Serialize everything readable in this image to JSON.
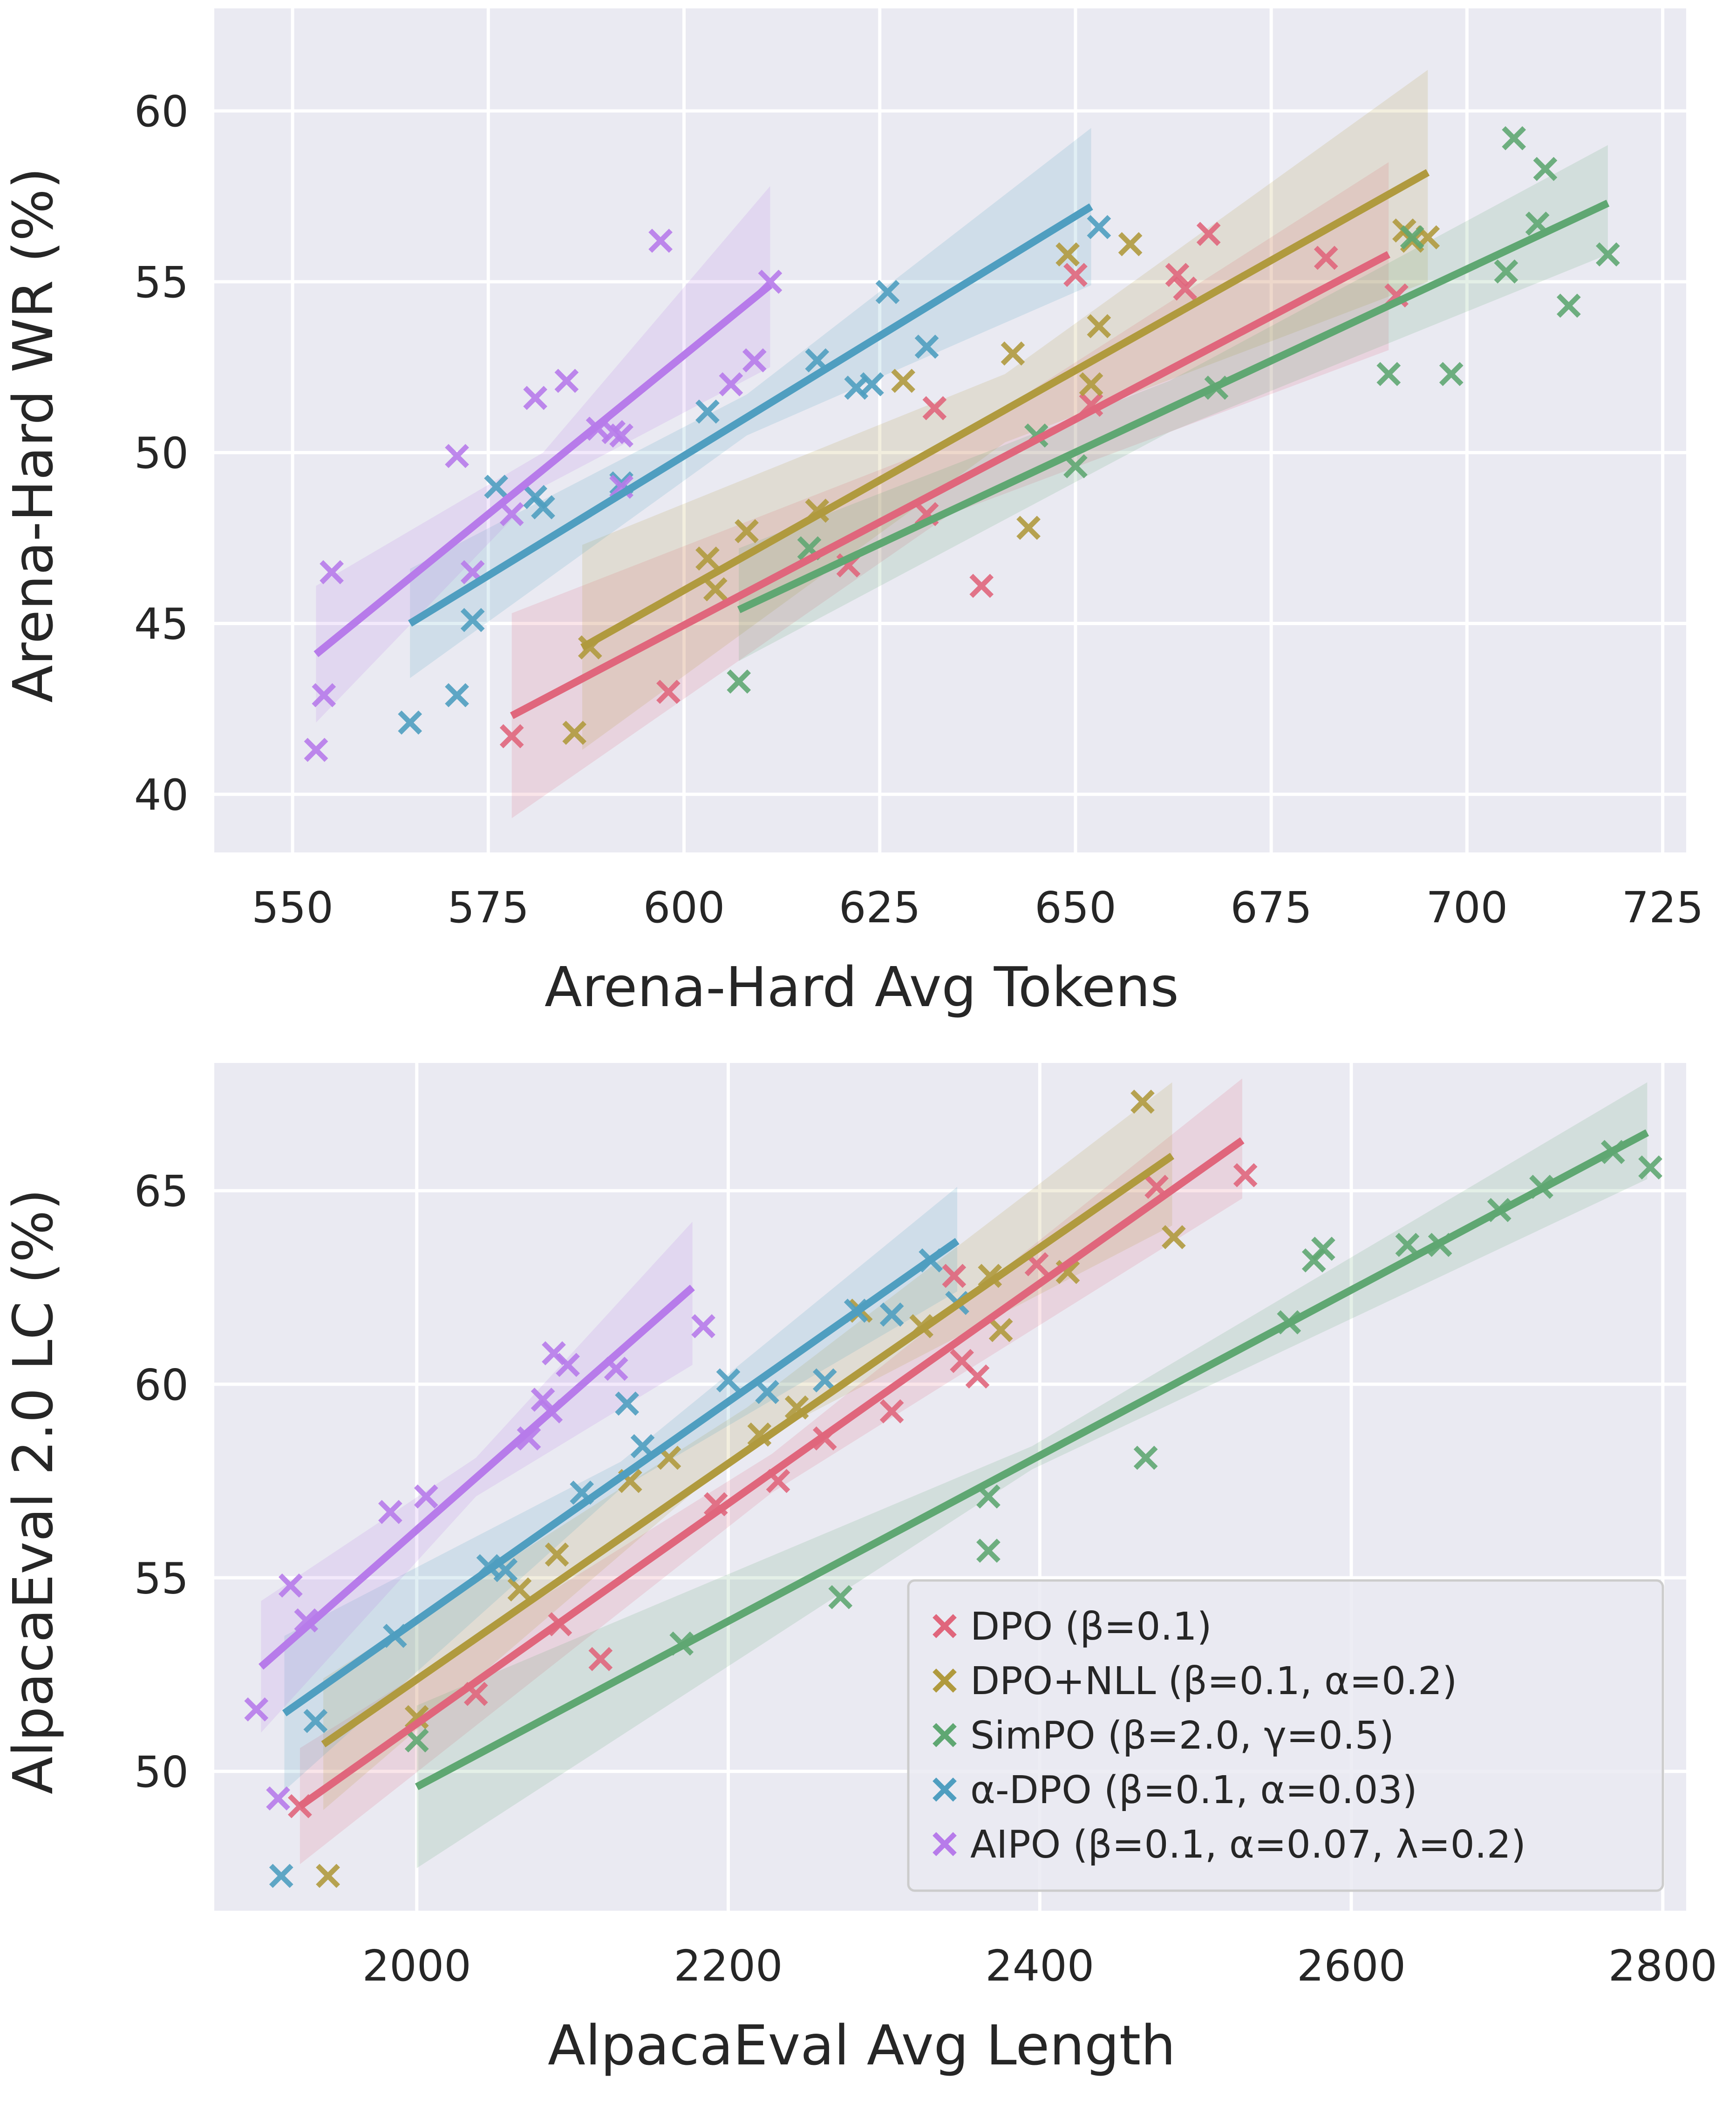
{
  "series_styles": [
    {
      "key": "dpo",
      "color": "#e0667c"
    },
    {
      "key": "dponll",
      "color": "#b09a3e"
    },
    {
      "key": "simpo",
      "color": "#5fa772"
    },
    {
      "key": "adpo",
      "color": "#4f9ec0"
    },
    {
      "key": "aipo",
      "color": "#b77bea"
    }
  ],
  "legend": {
    "placement": "lower-right of bottom chart",
    "entries": [
      "DPO (β=0.1)",
      "DPO+NLL (β=0.1, α=0.2)",
      "SimPO (β=2.0, γ=0.5)",
      "α-DPO (β=0.1, α=0.03)",
      "AIPO (β=0.1, α=0.07, λ=0.2)"
    ]
  },
  "chart_data": [
    {
      "type": "scatter",
      "xlabel": "Arena-Hard Avg Tokens",
      "ylabel": "Arena-Hard WR (%)",
      "xlim": [
        540,
        728
      ],
      "ylim": [
        38.3,
        63
      ],
      "xticks": [
        550,
        575,
        600,
        625,
        650,
        675,
        700,
        725
      ],
      "yticks": [
        40,
        45,
        50,
        55,
        60
      ],
      "grid": true,
      "series": [
        {
          "key": "dpo",
          "points": [
            [
              578,
              41.7
            ],
            [
              598,
              43.0
            ],
            [
              621,
              46.7
            ],
            [
              631,
              48.2
            ],
            [
              632,
              51.3
            ],
            [
              638,
              46.1
            ],
            [
              650,
              55.2
            ],
            [
              652,
              51.4
            ],
            [
              663,
              55.2
            ],
            [
              664,
              54.8
            ],
            [
              667,
              56.4
            ],
            [
              682,
              55.7
            ],
            [
              691,
              54.6
            ]
          ],
          "fit": [
            [
              578,
              42.3
            ],
            [
              690,
              55.8
            ]
          ],
          "band": [
            [
              578,
              39.3,
              45.3
            ],
            [
              634,
              48.2,
              50.3
            ],
            [
              690,
              53.0,
              58.5
            ]
          ]
        },
        {
          "key": "dponll",
          "points": [
            [
              586,
              41.8
            ],
            [
              588,
              44.3
            ],
            [
              603,
              46.9
            ],
            [
              604,
              46.0
            ],
            [
              608,
              47.7
            ],
            [
              617,
              48.3
            ],
            [
              628,
              52.1
            ],
            [
              642,
              52.9
            ],
            [
              644,
              47.8
            ],
            [
              649,
              55.8
            ],
            [
              652,
              52.0
            ],
            [
              653,
              53.7
            ],
            [
              657,
              56.1
            ],
            [
              692,
              56.5
            ],
            [
              693,
              56.2
            ],
            [
              695,
              56.3
            ]
          ],
          "fit": [
            [
              587,
              44.3
            ],
            [
              695,
              58.2
            ]
          ],
          "band": [
            [
              587,
              41.3,
              47.3
            ],
            [
              641,
              50.3,
              52.3
            ],
            [
              695,
              55.0,
              61.2
            ]
          ]
        },
        {
          "key": "simpo",
          "points": [
            [
              607,
              43.3
            ],
            [
              616,
              47.2
            ],
            [
              645,
              50.5
            ],
            [
              650,
              49.6
            ],
            [
              668,
              51.9
            ],
            [
              690,
              52.3
            ],
            [
              693,
              56.3
            ],
            [
              698,
              52.3
            ],
            [
              705,
              55.3
            ],
            [
              706,
              59.2
            ],
            [
              709,
              56.7
            ],
            [
              710,
              58.3
            ],
            [
              713,
              54.3
            ],
            [
              718,
              55.8
            ]
          ],
          "fit": [
            [
              607,
              45.4
            ],
            [
              718,
              57.3
            ]
          ],
          "band": [
            [
              607,
              43.9,
              47.2
            ],
            [
              662,
              50.6,
              52.1
            ],
            [
              718,
              55.8,
              59.0
            ]
          ]
        },
        {
          "key": "adpo",
          "points": [
            [
              565,
              42.1
            ],
            [
              571,
              42.9
            ],
            [
              573,
              45.1
            ],
            [
              576,
              49.0
            ],
            [
              581,
              48.7
            ],
            [
              582,
              48.4
            ],
            [
              592,
              49.1
            ],
            [
              603,
              51.2
            ],
            [
              617,
              52.7
            ],
            [
              622,
              51.9
            ],
            [
              624,
              52.0
            ],
            [
              626,
              54.7
            ],
            [
              631,
              53.1
            ],
            [
              653,
              56.6
            ]
          ],
          "fit": [
            [
              565,
              45.0
            ],
            [
              652,
              57.2
            ]
          ],
          "band": [
            [
              565,
              43.4,
              46.6
            ],
            [
              608,
              50.5,
              51.7
            ],
            [
              652,
              54.9,
              59.5
            ]
          ]
        },
        {
          "key": "aipo",
          "points": [
            [
              553,
              41.3
            ],
            [
              554,
              42.9
            ],
            [
              555,
              46.5
            ],
            [
              571,
              49.9
            ],
            [
              573,
              46.5
            ],
            [
              578,
              48.2
            ],
            [
              581,
              51.6
            ],
            [
              585,
              52.1
            ],
            [
              589,
              50.7
            ],
            [
              591,
              50.6
            ],
            [
              592,
              50.5
            ],
            [
              592,
              49.0
            ],
            [
              597,
              56.2
            ],
            [
              606,
              52.0
            ],
            [
              609,
              52.7
            ],
            [
              611,
              55.0
            ]
          ],
          "fit": [
            [
              553,
              44.1
            ],
            [
              611,
              54.9
            ]
          ],
          "band": [
            [
              553,
              42.1,
              46.1
            ],
            [
              582,
              49.0,
              50.0
            ],
            [
              611,
              52.5,
              57.8
            ]
          ]
        }
      ]
    },
    {
      "type": "scatter",
      "xlabel": "AlpacaEval Avg Length",
      "ylabel": "AlpacaEval 2.0 LC (%)",
      "xlim": [
        1870,
        2815
      ],
      "ylim": [
        46.4,
        68.3
      ],
      "xticks": [
        2000,
        2200,
        2400,
        2600,
        2800
      ],
      "yticks": [
        50,
        55,
        60,
        65
      ],
      "grid": true,
      "series": [
        {
          "key": "dpo",
          "points": [
            [
              1925,
              49.1
            ],
            [
              2038,
              52.0
            ],
            [
              2092,
              53.8
            ],
            [
              2118,
              52.9
            ],
            [
              2192,
              56.9
            ],
            [
              2232,
              57.5
            ],
            [
              2262,
              58.6
            ],
            [
              2305,
              59.3
            ],
            [
              2345,
              62.8
            ],
            [
              2350,
              60.6
            ],
            [
              2360,
              60.2
            ],
            [
              2398,
              63.1
            ],
            [
              2475,
              65.1
            ],
            [
              2532,
              65.4
            ]
          ],
          "fit": [
            [
              1925,
              49.1
            ],
            [
              2530,
              66.3
            ]
          ],
          "band": [
            [
              1925,
              47.6,
              50.6
            ],
            [
              2228,
              57.2,
              58.2
            ],
            [
              2530,
              64.8,
              67.9
            ]
          ]
        },
        {
          "key": "dponll",
          "points": [
            [
              1943,
              47.3
            ],
            [
              2000,
              51.4
            ],
            [
              2066,
              54.7
            ],
            [
              2090,
              55.6
            ],
            [
              2137,
              57.5
            ],
            [
              2162,
              58.1
            ],
            [
              2220,
              58.7
            ],
            [
              2244,
              59.4
            ],
            [
              2285,
              61.9
            ],
            [
              2324,
              61.5
            ],
            [
              2368,
              62.8
            ],
            [
              2375,
              61.4
            ],
            [
              2418,
              62.9
            ],
            [
              2466,
              67.3
            ],
            [
              2486,
              63.8
            ]
          ],
          "fit": [
            [
              1940,
              50.7
            ],
            [
              2485,
              65.9
            ]
          ],
          "band": [
            [
              1940,
              49.0,
              52.4
            ],
            [
              2212,
              58.4,
              59.4
            ],
            [
              2485,
              64.1,
              67.8
            ]
          ]
        },
        {
          "key": "simpo",
          "points": [
            [
              2000,
              50.8
            ],
            [
              2170,
              53.3
            ],
            [
              2272,
              54.5
            ],
            [
              2367,
              57.1
            ],
            [
              2367,
              55.7
            ],
            [
              2468,
              58.1
            ],
            [
              2560,
              61.6
            ],
            [
              2576,
              63.2
            ],
            [
              2582,
              63.5
            ],
            [
              2636,
              63.6
            ],
            [
              2657,
              63.6
            ],
            [
              2695,
              64.5
            ],
            [
              2722,
              65.1
            ],
            [
              2768,
              66.0
            ],
            [
              2792,
              65.6
            ]
          ],
          "fit": [
            [
              2000,
              49.6
            ],
            [
              2790,
              66.5
            ]
          ],
          "band": [
            [
              2000,
              47.5,
              51.7
            ],
            [
              2395,
              57.8,
              58.4
            ],
            [
              2790,
              65.3,
              67.8
            ]
          ]
        },
        {
          "key": "adpo",
          "points": [
            [
              1913,
              47.3
            ],
            [
              1935,
              51.3
            ],
            [
              1986,
              53.5
            ],
            [
              2046,
              55.3
            ],
            [
              2057,
              55.2
            ],
            [
              2106,
              57.2
            ],
            [
              2135,
              59.5
            ],
            [
              2145,
              58.4
            ],
            [
              2200,
              60.1
            ],
            [
              2225,
              59.8
            ],
            [
              2262,
              60.1
            ],
            [
              2282,
              61.9
            ],
            [
              2305,
              61.8
            ],
            [
              2330,
              63.2
            ],
            [
              2347,
              62.1
            ]
          ],
          "fit": [
            [
              1915,
              51.5
            ],
            [
              2347,
              63.7
            ]
          ],
          "band": [
            [
              1915,
              49.5,
              53.5
            ],
            [
              2131,
              57.3,
              58.0
            ],
            [
              2347,
              62.4,
              65.1
            ]
          ]
        },
        {
          "key": "aipo",
          "points": [
            [
              1897,
              51.6
            ],
            [
              1911,
              49.3
            ],
            [
              1919,
              54.8
            ],
            [
              1929,
              53.9
            ],
            [
              1983,
              56.7
            ],
            [
              2006,
              57.1
            ],
            [
              2072,
              58.6
            ],
            [
              2081,
              59.6
            ],
            [
              2086,
              59.3
            ],
            [
              2088,
              60.8
            ],
            [
              2097,
              60.5
            ],
            [
              2128,
              60.4
            ],
            [
              2184,
              61.5
            ]
          ],
          "fit": [
            [
              1900,
              52.7
            ],
            [
              2177,
              62.5
            ]
          ],
          "band": [
            [
              1900,
              51.0,
              54.4
            ],
            [
              2038,
              57.1,
              58.1
            ],
            [
              2177,
              60.5,
              64.2
            ]
          ]
        }
      ]
    }
  ]
}
